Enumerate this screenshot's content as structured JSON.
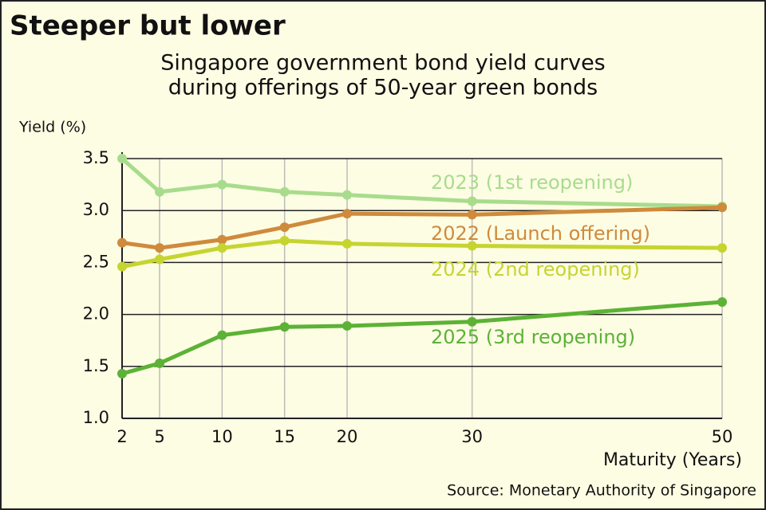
{
  "chart_data": {
    "type": "line",
    "title": "Steeper but lower",
    "subtitle": [
      "Singapore government bond yield curves",
      "during offerings of 50-year green bonds"
    ],
    "y_label": "Yield (%)",
    "x_label": "Maturity (Years)",
    "source": "Source: Monetary Authority of Singapore",
    "x": [
      2,
      5,
      10,
      15,
      20,
      30,
      50
    ],
    "xlim": [
      2,
      50
    ],
    "xticks": [
      2,
      5,
      10,
      15,
      20,
      30,
      50
    ],
    "ylim": [
      1.0,
      3.5
    ],
    "yticks": [
      {
        "value": 1.0,
        "label": "1.0"
      },
      1.5,
      {
        "value": 2.0,
        "label": "2.0"
      },
      2.5,
      {
        "value": 3.0,
        "label": "3.0"
      },
      3.5
    ],
    "grid": true,
    "series": [
      {
        "name": "2023 (1st reopening)",
        "color": "#a8dc8c",
        "values": [
          3.5,
          3.18,
          3.25,
          3.18,
          3.15,
          3.09,
          3.04
        ]
      },
      {
        "name": "2022 (Launch offering)",
        "color": "#cf8a3c",
        "values": [
          2.69,
          2.64,
          2.72,
          2.84,
          2.97,
          2.96,
          3.03
        ]
      },
      {
        "name": "2024 (2nd reopening)",
        "color": "#c6d430",
        "values": [
          2.46,
          2.53,
          2.64,
          2.71,
          2.68,
          2.66,
          2.64
        ]
      },
      {
        "name": "2025 (3rd reopening)",
        "color": "#5cb236",
        "values": [
          1.43,
          1.53,
          1.8,
          1.88,
          1.89,
          1.93,
          2.12
        ]
      }
    ]
  }
}
